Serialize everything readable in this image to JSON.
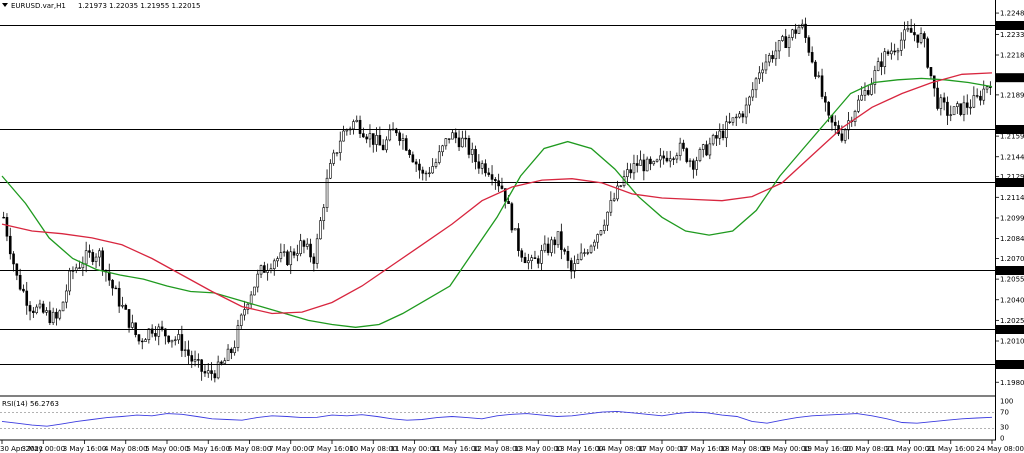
{
  "header": {
    "symbol": "EURUSD.var,H1",
    "ohlc": "1.21973 1.22035 1.21955 1.22015"
  },
  "rsi_header": "RSI(14) 56.2763",
  "colors": {
    "background": "#ffffff",
    "candle": "#000000",
    "ma_fast": "#1f9a1f",
    "ma_slow": "#d8263f",
    "rsi": "#3c3ce0",
    "level_line": "#000000",
    "current_price_bg": "#000000"
  },
  "chart_data": [
    {
      "type": "line",
      "title": "",
      "xlabel": "",
      "ylabel": "",
      "ylim": [
        1.197,
        1.2258
      ],
      "x_tick_labels": [
        "30 Apr 2021",
        "3 May 00:00",
        "3 May 16:00",
        "4 May 08:00",
        "5 May 00:00",
        "5 May 16:00",
        "6 May 08:00",
        "7 May 00:00",
        "7 May 16:00",
        "10 May 08:00",
        "11 May 00:00",
        "11 May 16:00",
        "12 May 08:00",
        "13 May 00:00",
        "13 May 16:00",
        "14 May 08:00",
        "17 May 00:00",
        "17 May 16:00",
        "18 May 08:00",
        "19 May 00:00",
        "19 May 16:00",
        "20 May 08:00",
        "21 May 00:00",
        "21 May 16:00",
        "24 May 08:00"
      ],
      "y_tick_labels": [
        "1.22485",
        "1.22330",
        "1.22180",
        "1.21890",
        "1.21590",
        "1.21440",
        "1.21295",
        "1.21145",
        "1.20995",
        "1.20845",
        "1.20700",
        "1.20550",
        "1.20400",
        "1.20250",
        "1.20100",
        "1.19800"
      ],
      "horizontal_levels": [
        "1.22395",
        "1.21639",
        "1.21258",
        "1.20617",
        "1.20190",
        "1.19935"
      ],
      "current_price": "1.22015",
      "close_approx": [
        1.21,
        1.2055,
        1.2035,
        1.203,
        1.2025,
        1.206,
        1.207,
        1.2075,
        1.205,
        1.203,
        1.201,
        1.202,
        1.2015,
        1.201,
        1.1995,
        1.1985,
        1.199,
        1.2005,
        1.204,
        1.206,
        1.207,
        1.207,
        1.208,
        1.207,
        1.213,
        1.216,
        1.217,
        1.216,
        1.215,
        1.2165,
        1.215,
        1.213,
        1.214,
        1.216,
        1.2155,
        1.214,
        1.2135,
        1.212,
        1.208,
        1.2065,
        1.2075,
        1.2085,
        1.206,
        1.2075,
        1.209,
        1.211,
        1.213,
        1.214,
        1.2135,
        1.2145,
        1.215,
        1.214,
        1.215,
        1.216,
        1.217,
        1.218,
        1.221,
        1.222,
        1.223,
        1.224,
        1.221,
        1.217,
        1.216,
        1.218,
        1.2195,
        1.2215,
        1.2225,
        1.2235,
        1.223,
        1.2185,
        1.2175,
        1.218,
        1.2185,
        1.22
      ],
      "series": [
        {
          "name": "",
          "values": [
            1.213,
            1.211,
            1.2085,
            1.207,
            1.2062,
            1.2058,
            1.2055,
            1.205,
            1.2046,
            1.2045,
            1.204,
            1.2035,
            1.203,
            1.2025,
            1.2022,
            1.202,
            1.2022,
            1.203,
            1.204,
            1.205,
            1.2075,
            1.21,
            1.213,
            1.215,
            1.2155,
            1.215,
            1.2135,
            1.2115,
            1.21,
            1.209,
            1.2087,
            1.209,
            1.2105,
            1.213,
            1.215,
            1.217,
            1.219,
            1.2198,
            1.22,
            1.2201,
            1.22,
            1.2198,
            1.2195
          ]
        },
        {
          "name": "",
          "values": [
            1.2095,
            1.209,
            1.2088,
            1.2085,
            1.208,
            1.207,
            1.2058,
            1.2046,
            1.2035,
            1.203,
            1.2031,
            1.2038,
            1.205,
            1.2065,
            1.208,
            1.2095,
            1.2112,
            1.2122,
            1.2127,
            1.2128,
            1.2125,
            1.2117,
            1.2114,
            1.2113,
            1.2112,
            1.2115,
            1.2125,
            1.2145,
            1.2165,
            1.218,
            1.219,
            1.2198,
            1.2204,
            1.2205
          ]
        }
      ]
    },
    {
      "type": "line",
      "title": "",
      "ylim": [
        0,
        100
      ],
      "levels": [
        30,
        70
      ],
      "y_tick_labels": [
        "100",
        "70",
        "30",
        "0"
      ],
      "series": [
        {
          "name": "RSI(14)",
          "values": [
            45,
            40,
            35,
            32,
            38,
            45,
            50,
            55,
            58,
            62,
            60,
            66,
            64,
            58,
            52,
            50,
            48,
            55,
            60,
            58,
            55,
            56,
            62,
            60,
            63,
            58,
            52,
            48,
            50,
            55,
            58,
            55,
            52,
            60,
            64,
            66,
            62,
            58,
            60,
            65,
            70,
            72,
            68,
            64,
            60,
            66,
            70,
            68,
            62,
            58,
            45,
            40,
            48,
            55,
            60,
            62,
            64,
            66,
            60,
            52,
            42,
            40,
            44,
            48,
            52,
            54,
            56
          ]
        }
      ]
    }
  ]
}
